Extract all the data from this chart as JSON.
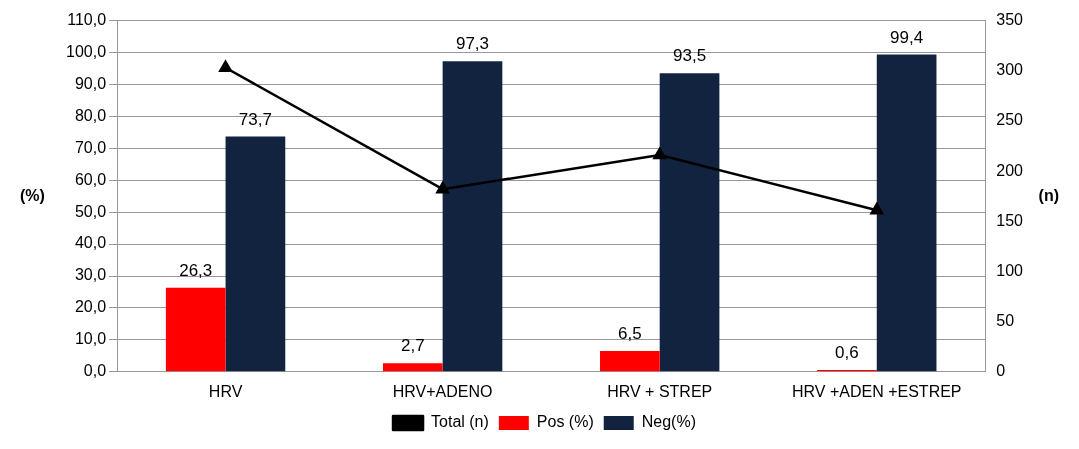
{
  "chart_data": {
    "type": "bar",
    "ylabel": "(%)",
    "y2label": "(n)",
    "categories": [
      "HRV",
      "HRV+ADENO",
      "HRV + STREP",
      "HRV +ADEN +ESTREP"
    ],
    "series": [
      {
        "name": "Pos (%)",
        "color": "#ff0000",
        "values": [
          26.3,
          2.7,
          6.5,
          0.6
        ],
        "value_labels": [
          "26,3",
          "2,7",
          "6,5",
          "0,6"
        ]
      },
      {
        "name": "Neg(%)",
        "color": "#12233f",
        "values": [
          73.7,
          97.3,
          93.5,
          99.4
        ],
        "value_labels": [
          "73,7",
          "97,3",
          "93,5",
          "99,4"
        ]
      },
      {
        "name": "Total (n)",
        "type": "line",
        "axis": "y2",
        "color": "#000000",
        "marker": "triangle",
        "values": [
          303,
          182,
          216,
          161
        ]
      }
    ],
    "ylim": [
      0,
      110
    ],
    "yticks": [
      {
        "value": 0,
        "label": "0,0"
      },
      {
        "value": 10,
        "label": "10,0"
      },
      {
        "value": 20,
        "label": "20,0"
      },
      {
        "value": 30,
        "label": "30,0"
      },
      {
        "value": 40,
        "label": "40,0"
      },
      {
        "value": 50,
        "label": "50,0"
      },
      {
        "value": 60,
        "label": "60,0"
      },
      {
        "value": 70,
        "label": "70,0"
      },
      {
        "value": 80,
        "label": "80,0"
      },
      {
        "value": 90,
        "label": "90,0"
      },
      {
        "value": 100,
        "label": "100,0"
      },
      {
        "value": 110,
        "label": "110,0"
      }
    ],
    "y2lim": [
      0,
      350
    ],
    "y2ticks": [
      0,
      50,
      100,
      150,
      200,
      250,
      300,
      350
    ],
    "grid": "y",
    "legend": "bottom"
  }
}
